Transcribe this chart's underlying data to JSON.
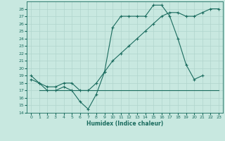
{
  "xlabel": "Humidex (Indice chaleur)",
  "xlim": [
    -0.5,
    23.5
  ],
  "ylim": [
    14,
    29
  ],
  "xticks": [
    0,
    1,
    2,
    3,
    4,
    5,
    6,
    7,
    8,
    9,
    10,
    11,
    12,
    13,
    14,
    15,
    16,
    17,
    18,
    19,
    20,
    21,
    22,
    23
  ],
  "yticks": [
    14,
    15,
    16,
    17,
    18,
    19,
    20,
    21,
    22,
    23,
    24,
    25,
    26,
    27,
    28
  ],
  "bg_color": "#c8e8e0",
  "line_color": "#1a6b5e",
  "grid_color": "#b0d4cc",
  "lx1": [
    0,
    1,
    2,
    3,
    4,
    5,
    6,
    7,
    8,
    9,
    10,
    11,
    12,
    13,
    14,
    15,
    16,
    17,
    18,
    19,
    20,
    21
  ],
  "ly1": [
    19,
    18,
    17,
    17,
    17.5,
    17,
    15.5,
    14.5,
    16.5,
    19.5,
    25.5,
    27,
    27,
    27,
    27,
    28.5,
    28.5,
    27,
    24,
    20.5,
    18.5,
    19
  ],
  "lx2": [
    0,
    1,
    2,
    3,
    4,
    5,
    6,
    7,
    8,
    9,
    10,
    11,
    12,
    13,
    14,
    15,
    16,
    17,
    18,
    19,
    20,
    21,
    22,
    23
  ],
  "ly2": [
    18.5,
    18,
    17.5,
    17.5,
    18,
    18,
    17,
    17,
    18,
    19.5,
    21,
    22,
    23,
    24,
    25,
    26,
    27,
    27.5,
    27.5,
    27,
    27,
    27.5,
    28,
    28
  ],
  "lx3": [
    1,
    2,
    3,
    4,
    5,
    6,
    7,
    8,
    9,
    10,
    11,
    12,
    13,
    14,
    15,
    16,
    17,
    18,
    19,
    20,
    21,
    22,
    23
  ],
  "ly3": [
    17,
    17,
    17,
    17,
    17,
    17,
    17,
    17,
    17,
    17,
    17,
    17,
    17,
    17,
    17,
    17,
    17,
    17,
    17,
    17,
    17,
    17,
    17
  ]
}
